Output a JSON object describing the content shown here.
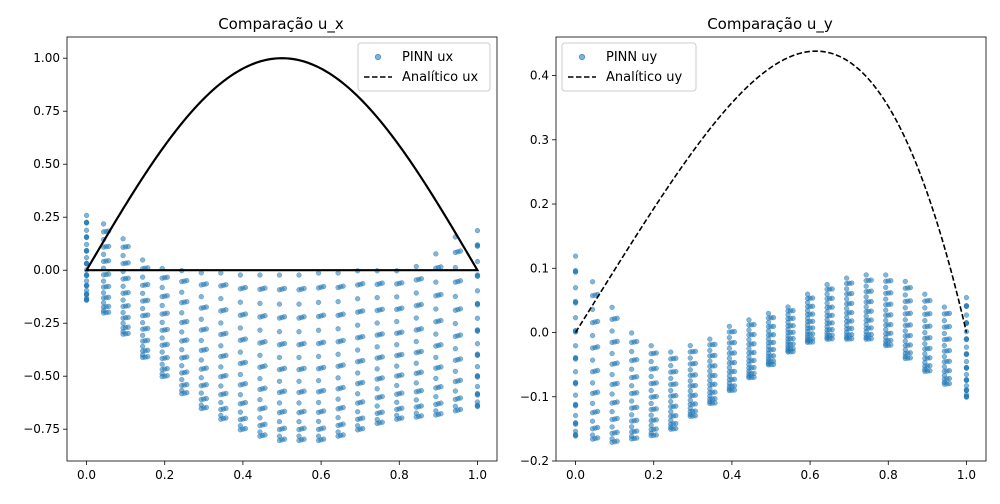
{
  "chart_data": [
    {
      "type": "scatter",
      "title": "Comparação u_x",
      "xlabel": "",
      "ylabel": "",
      "xlim": [
        -0.05,
        1.05
      ],
      "ylim": [
        -0.9,
        1.1
      ],
      "xticks": [
        0.0,
        0.2,
        0.4,
        0.6,
        0.8,
        1.0
      ],
      "xtick_labels": [
        "0.0",
        "0.2",
        "0.4",
        "0.6",
        "0.8",
        "1.0"
      ],
      "yticks": [
        -0.75,
        -0.5,
        -0.25,
        0.0,
        0.25,
        0.5,
        0.75,
        1.0
      ],
      "ytick_labels": [
        "−0.75",
        "−0.50",
        "−0.25",
        "0.00",
        "0.25",
        "0.50",
        "0.75",
        "1.00"
      ],
      "legend_position": "top-right",
      "series": [
        {
          "name": "PINN ux",
          "kind": "scatter",
          "color": "#1f77b4",
          "x": [
            0.0,
            0.05,
            0.1,
            0.15,
            0.2,
            0.25,
            0.3,
            0.35,
            0.4,
            0.45,
            0.5,
            0.55,
            0.6,
            0.65,
            0.7,
            0.75,
            0.8,
            0.85,
            0.9,
            0.95,
            1.0
          ],
          "y_top": [
            0.26,
            0.22,
            0.15,
            0.05,
            0.01,
            0.0,
            -0.01,
            -0.01,
            -0.02,
            -0.02,
            -0.02,
            -0.02,
            -0.01,
            -0.01,
            0.0,
            0.0,
            0.0,
            0.02,
            0.08,
            0.16,
            0.19
          ],
          "y_bottom": [
            -0.14,
            -0.2,
            -0.3,
            -0.41,
            -0.5,
            -0.58,
            -0.65,
            -0.7,
            -0.75,
            -0.78,
            -0.8,
            -0.8,
            -0.8,
            -0.78,
            -0.75,
            -0.72,
            -0.7,
            -0.69,
            -0.68,
            -0.66,
            -0.64
          ],
          "rows_per_column": 16
        },
        {
          "name": "Analítico ux",
          "kind": "line",
          "style": "dashed",
          "color": "#000000",
          "function": "sin(pi*x)",
          "baseline_y": 0.0,
          "x_range": [
            0,
            1
          ],
          "peak": {
            "x": 0.5,
            "y": 1.0
          }
        }
      ]
    },
    {
      "type": "scatter",
      "title": "Comparação u_y",
      "xlabel": "",
      "ylabel": "",
      "xlim": [
        -0.05,
        1.05
      ],
      "ylim": [
        -0.2,
        0.46
      ],
      "xticks": [
        0.0,
        0.2,
        0.4,
        0.6,
        0.8,
        1.0
      ],
      "xtick_labels": [
        "0.0",
        "0.2",
        "0.4",
        "0.6",
        "0.8",
        "1.0"
      ],
      "yticks": [
        -0.2,
        -0.1,
        0.0,
        0.1,
        0.2,
        0.3,
        0.4
      ],
      "ytick_labels": [
        "−0.2",
        "−0.1",
        "0.0",
        "0.1",
        "0.2",
        "0.3",
        "0.4"
      ],
      "legend_position": "top-left",
      "series": [
        {
          "name": "PINN uy",
          "kind": "scatter",
          "color": "#1f77b4",
          "x": [
            0.0,
            0.05,
            0.1,
            0.15,
            0.2,
            0.25,
            0.3,
            0.35,
            0.4,
            0.45,
            0.5,
            0.55,
            0.6,
            0.65,
            0.7,
            0.75,
            0.8,
            0.85,
            0.9,
            0.95,
            1.0
          ],
          "y_top": [
            0.12,
            0.08,
            0.04,
            0.0,
            -0.02,
            -0.03,
            -0.02,
            -0.01,
            0.01,
            0.02,
            0.03,
            0.04,
            0.06,
            0.075,
            0.085,
            0.09,
            0.09,
            0.08,
            0.06,
            0.04,
            0.055
          ],
          "y_bottom": [
            -0.16,
            -0.165,
            -0.17,
            -0.165,
            -0.16,
            -0.15,
            -0.13,
            -0.11,
            -0.09,
            -0.07,
            -0.05,
            -0.03,
            -0.015,
            -0.01,
            -0.01,
            -0.01,
            -0.02,
            -0.04,
            -0.06,
            -0.08,
            -0.1
          ],
          "rows_per_column": 16
        },
        {
          "name": "Analítico uy",
          "kind": "line",
          "style": "dashed",
          "color": "#000000",
          "x_range": [
            0,
            1
          ],
          "peak": {
            "x": 0.615,
            "y": 0.438
          }
        }
      ]
    }
  ]
}
